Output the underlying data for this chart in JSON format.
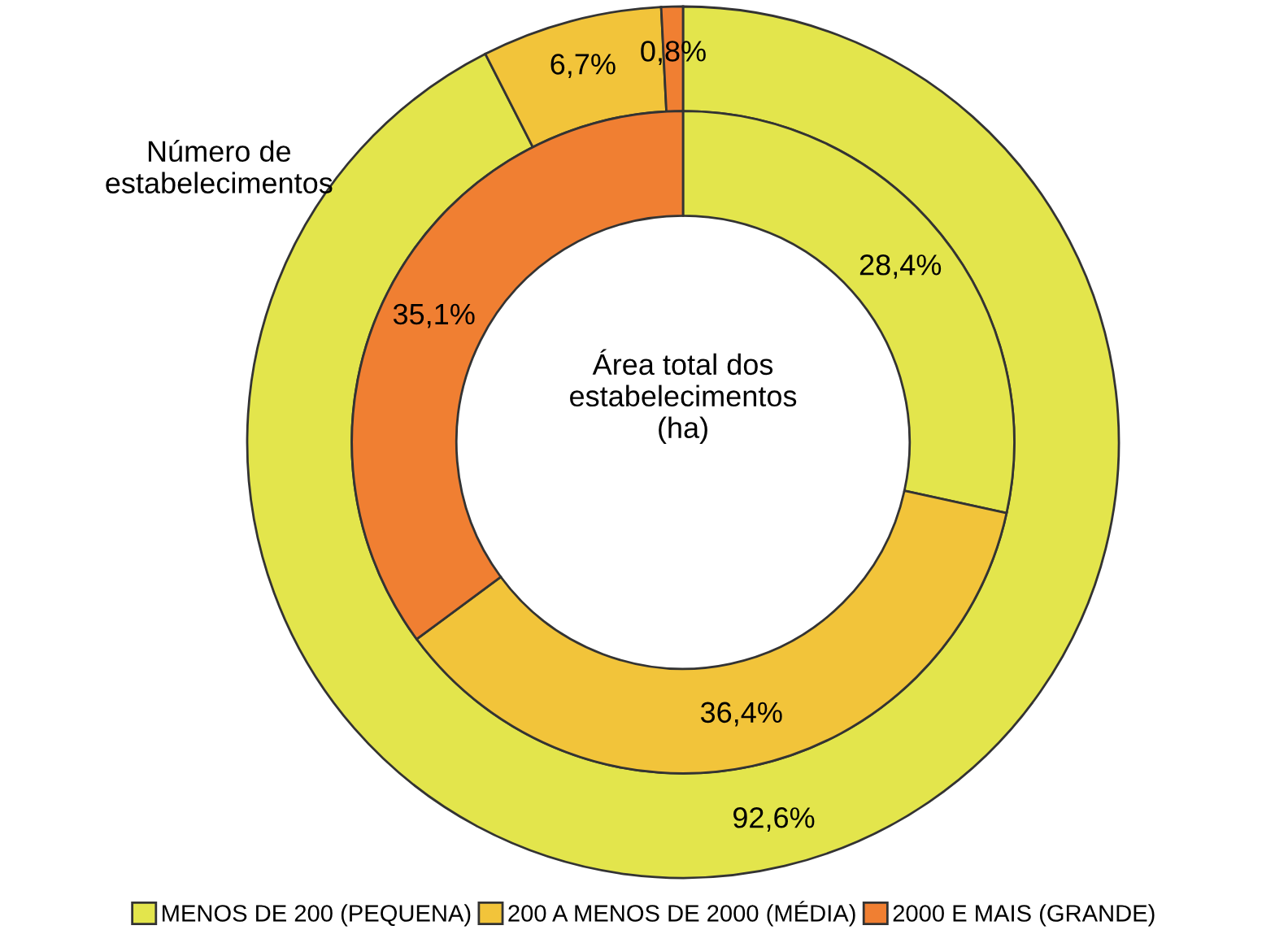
{
  "chart_data": {
    "type": "donut",
    "categories": [
      "MENOS DE 200 (PEQUENA)",
      "200 A MENOS DE 2000 (MÉDIA)",
      "2000 E MAIS (GRANDE)"
    ],
    "colors": [
      "#e3e54c",
      "#f2c43a",
      "#f07f32"
    ],
    "series": [
      {
        "name": "Número de estabelecimentos",
        "values": [
          92.6,
          6.7,
          0.8
        ],
        "value_labels": [
          "92,6%",
          "6,7%",
          "0,8%"
        ]
      },
      {
        "name": "Área total dos estabelecimentos (ha)",
        "values": [
          28.4,
          36.4,
          35.1
        ],
        "value_labels": [
          "28,4%",
          "36,4%",
          "35,1%"
        ]
      }
    ],
    "legend": "bottom"
  }
}
